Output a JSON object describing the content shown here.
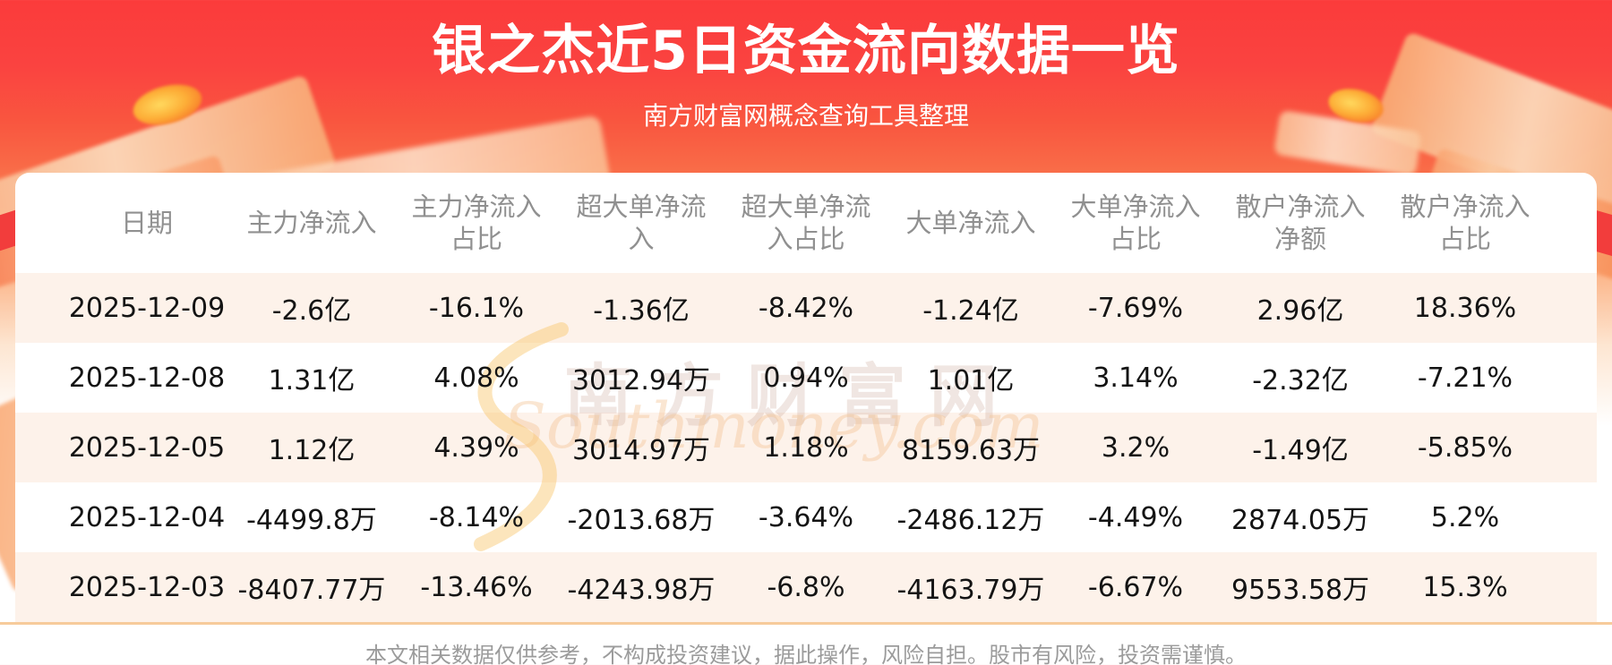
{
  "header": {
    "title": "银之杰近5日资金流向数据一览",
    "subtitle": "南方财富网概念查询工具整理"
  },
  "chart_data": {
    "type": "table",
    "title": "银之杰近5日资金流向数据一览",
    "columns": [
      "日期",
      "主力净流入",
      "主力净流入占比",
      "超大单净流入",
      "超大单净流入占比",
      "大单净流入",
      "大单净流入占比",
      "散户净流入净额",
      "散户净流入占比"
    ],
    "rows": [
      [
        "2025-12-09",
        "-2.6亿",
        "-16.1%",
        "-1.36亿",
        "-8.42%",
        "-1.24亿",
        "-7.69%",
        "2.96亿",
        "18.36%"
      ],
      [
        "2025-12-08",
        "1.31亿",
        "4.08%",
        "3012.94万",
        "0.94%",
        "1.01亿",
        "3.14%",
        "-2.32亿",
        "-7.21%"
      ],
      [
        "2025-12-05",
        "1.12亿",
        "4.39%",
        "3014.97万",
        "1.18%",
        "8159.63万",
        "3.2%",
        "-1.49亿",
        "-5.85%"
      ],
      [
        "2025-12-04",
        "-4499.8万",
        "-8.14%",
        "-2013.68万",
        "-3.64%",
        "-2486.12万",
        "-4.49%",
        "2874.05万",
        "5.2%"
      ],
      [
        "2025-12-03",
        "-8407.77万",
        "-13.46%",
        "-4243.98万",
        "-6.8%",
        "-4163.79万",
        "-6.67%",
        "9553.58万",
        "15.3%"
      ]
    ]
  },
  "watermark": {
    "cn": "南方财富网",
    "en": "Southmoney.com"
  },
  "footer": {
    "disclaimer": "本文相关数据仅供参考，不构成投资建议，据此操作，风险自担。股市有风险，投资需谨慎。"
  },
  "colors": {
    "banner_red": "#fb3b3b",
    "banner_orange": "#fa8a5b",
    "row_stripe": "#fdf2ea",
    "divider": "#f7cb9b",
    "header_text": "#909090",
    "cell_text": "#141414",
    "disclaimer_text": "#9b9b9b"
  }
}
